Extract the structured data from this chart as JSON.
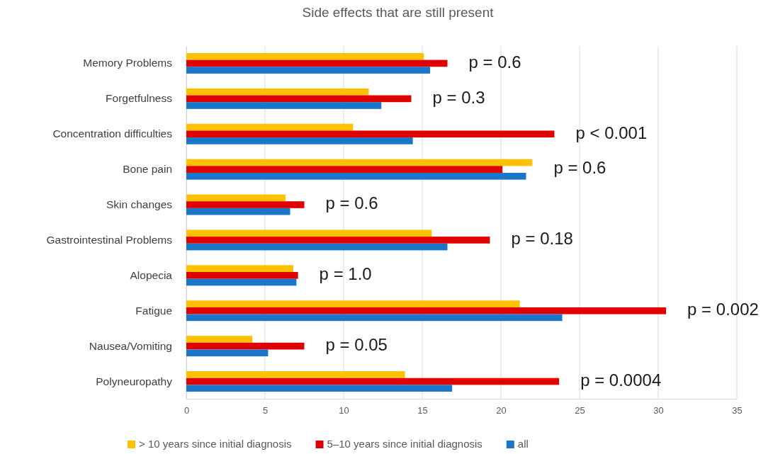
{
  "chart_data": {
    "type": "bar",
    "orientation": "horizontal",
    "title": "Side effects that are still present",
    "categories": [
      "Memory Problems",
      "Forgetfulness",
      "Concentration difficulties",
      "Bone pain",
      "Skin changes",
      "Gastrointestinal Problems",
      "Alopecia",
      "Fatigue",
      "Nausea/Vomiting",
      "Polyneuropathy"
    ],
    "series": [
      {
        "name": "> 10 years since initial diagnosis",
        "color": "#ffc000",
        "values": [
          15.1,
          11.6,
          10.6,
          22.0,
          6.3,
          15.6,
          6.8,
          21.2,
          4.2,
          13.9
        ]
      },
      {
        "name": "5–10 years since initial diagnosis",
        "color": "#e00000",
        "values": [
          16.6,
          14.3,
          23.4,
          20.1,
          7.5,
          19.3,
          7.1,
          30.5,
          7.5,
          23.7
        ]
      },
      {
        "name": "all",
        "color": "#1b75c9",
        "values": [
          15.5,
          12.4,
          14.4,
          21.6,
          6.6,
          16.6,
          7.0,
          23.9,
          5.2,
          16.9
        ]
      }
    ],
    "xlim": [
      0,
      35
    ],
    "xticks": [
      0,
      5,
      10,
      15,
      20,
      25,
      30,
      35
    ],
    "grid": "x",
    "legend": "bottom",
    "annotations": [
      "p = 0.6",
      "p = 0.3",
      "p < 0.001",
      "p = 0.6",
      "p = 0.6",
      "p = 0.18",
      "p = 1.0",
      "p = 0.002",
      "p = 0.05",
      "p = 0.0004"
    ]
  }
}
